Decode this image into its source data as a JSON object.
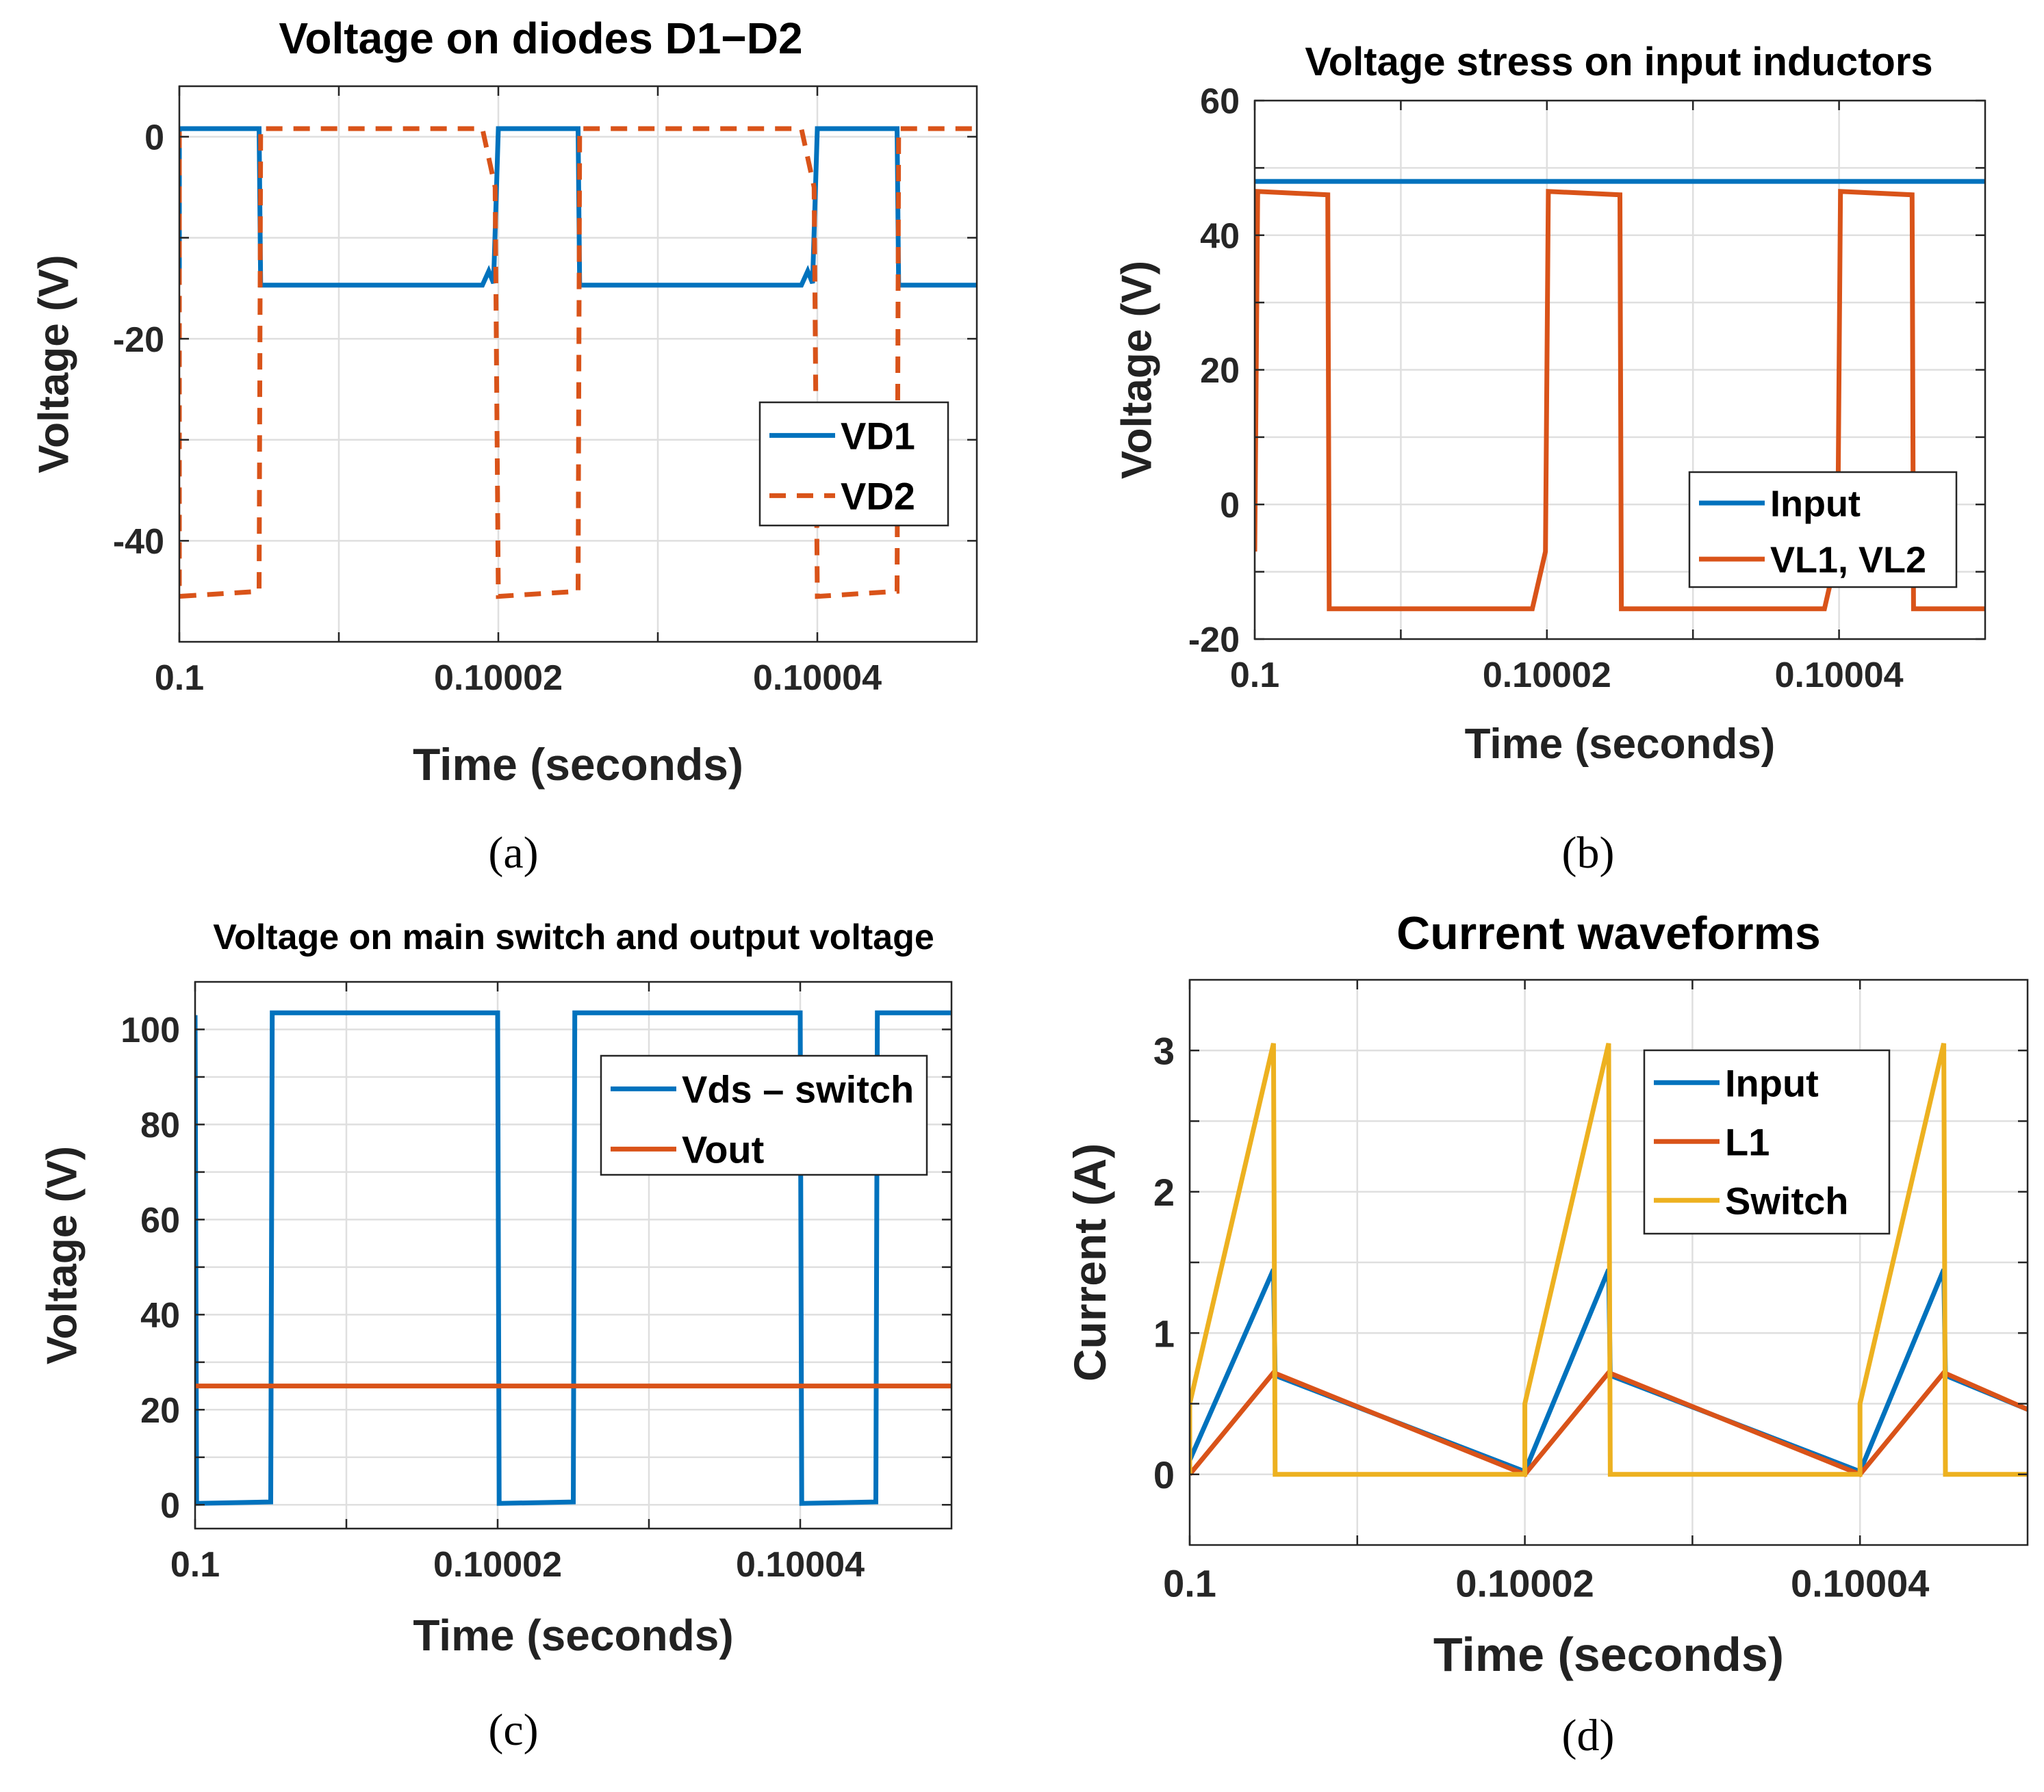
{
  "colors": {
    "blue": "#0072BD",
    "orange": "#D95319",
    "yellow": "#EDB120",
    "grid": "#DFDFDF",
    "axis": "#262626"
  },
  "chart_data": [
    {
      "id": "a",
      "panel_label": "(a)",
      "type": "line",
      "title": "Voltage on diodes D1−D2",
      "xlabel": "Time (seconds)",
      "ylabel": "Voltage (V)",
      "xlim": [
        0.1,
        0.10005
      ],
      "ylim": [
        -50,
        5
      ],
      "xticks": [
        0.1,
        0.10002,
        0.10004
      ],
      "xtick_labels": [
        "0.1",
        "0.10002",
        "0.10004"
      ],
      "xminor": [
        0.10001,
        0.10003
      ],
      "yticks": [
        0,
        -20,
        -40
      ],
      "ytick_labels": [
        "0",
        "-20",
        "-40"
      ],
      "yminor": [
        -10,
        -30
      ],
      "legend_position": "right-middle",
      "series": [
        {
          "name": "VD1",
          "color": "#0072BD",
          "style": "solid",
          "x": [
            0.1,
            0.1,
            0.100005,
            0.1000051,
            0.100019,
            0.1000194,
            0.1000197,
            0.10002,
            0.1000201,
            0.100025,
            0.1000251,
            0.100039,
            0.1000394,
            0.1000397,
            0.10004,
            0.1000401,
            0.100045,
            0.1000451,
            0.10005
          ],
          "y": [
            -14,
            0.8,
            0.8,
            -14.7,
            -14.7,
            -13.3,
            -14.5,
            0.8,
            0.8,
            0.8,
            -14.7,
            -14.7,
            -13.3,
            -14.5,
            0.8,
            0.8,
            0.8,
            -14.7,
            -14.7
          ]
        },
        {
          "name": "VD2",
          "color": "#D95319",
          "style": "dashed",
          "x": [
            0.1,
            0.1,
            0.100005,
            0.1000051,
            0.100019,
            0.1000198,
            0.10002,
            0.100025,
            0.1000251,
            0.100039,
            0.1000398,
            0.10004,
            0.100045,
            0.1000451,
            0.10005
          ],
          "y": [
            0.5,
            -45.5,
            -45,
            0.8,
            0.8,
            -5,
            -45.5,
            -45,
            0.8,
            0.8,
            -5,
            -45.5,
            -45,
            0.8,
            0.8
          ]
        }
      ]
    },
    {
      "id": "b",
      "panel_label": "(b)",
      "type": "line",
      "title": "Voltage stress on input inductors",
      "xlabel": "Time (seconds)",
      "ylabel": "Voltage (V)",
      "xlim": [
        0.1,
        0.10005
      ],
      "ylim": [
        -20,
        60
      ],
      "xticks": [
        0.1,
        0.10002,
        0.10004
      ],
      "xtick_labels": [
        "0.1",
        "0.10002",
        "0.10004"
      ],
      "xminor": [
        0.10001,
        0.10003
      ],
      "yticks": [
        60,
        40,
        20,
        0,
        -20
      ],
      "ytick_labels": [
        "60",
        "40",
        "20",
        "0",
        "-20"
      ],
      "yminor": [
        50,
        30,
        10,
        -10
      ],
      "legend_position": "bottom-right",
      "series": [
        {
          "name": "Input",
          "color": "#0072BD",
          "style": "solid",
          "x": [
            0.1,
            0.10005
          ],
          "y": [
            48,
            48
          ]
        },
        {
          "name": "VL1, VL2",
          "color": "#D95319",
          "style": "solid",
          "x": [
            0.1,
            0.1000002,
            0.100005,
            0.1000051,
            0.100019,
            0.1000199,
            0.1000201,
            0.100025,
            0.1000251,
            0.100039,
            0.1000399,
            0.1000401,
            0.100045,
            0.1000451,
            0.10005
          ],
          "y": [
            -7,
            46.5,
            46,
            -15.5,
            -15.5,
            -7,
            46.5,
            46,
            -15.5,
            -15.5,
            -7,
            46.5,
            46,
            -15.5,
            -15.5
          ]
        }
      ]
    },
    {
      "id": "c",
      "panel_label": "(c)",
      "type": "line",
      "title": "Voltage on main switch and output voltage",
      "xlabel": "Time (seconds)",
      "ylabel": "Voltage (V)",
      "xlim": [
        0.1,
        0.10005
      ],
      "ylim": [
        -5,
        110
      ],
      "xticks": [
        0.1,
        0.10002,
        0.10004
      ],
      "xtick_labels": [
        "0.1",
        "0.10002",
        "0.10004"
      ],
      "xminor": [
        0.10001,
        0.10003
      ],
      "yticks": [
        100,
        80,
        60,
        40,
        20,
        0
      ],
      "ytick_labels": [
        "100",
        "80",
        "60",
        "40",
        "20",
        "0"
      ],
      "yminor": [
        90,
        70,
        50,
        30,
        10
      ],
      "legend_position": "top-right",
      "series": [
        {
          "name": "Vds – switch",
          "color": "#0072BD",
          "style": "solid",
          "x": [
            0.1,
            0.1000001,
            0.100005,
            0.1000051,
            0.10002,
            0.1000201,
            0.100025,
            0.1000251,
            0.10004,
            0.1000401,
            0.100045,
            0.1000451,
            0.10005
          ],
          "y": [
            103,
            0.3,
            0.6,
            103.5,
            103.5,
            0.3,
            0.6,
            103.5,
            103.5,
            0.3,
            0.6,
            103.5,
            103.5
          ]
        },
        {
          "name": "Vout",
          "color": "#D95319",
          "style": "solid",
          "x": [
            0.1,
            0.10005
          ],
          "y": [
            25,
            25
          ]
        }
      ]
    },
    {
      "id": "d",
      "panel_label": "(d)",
      "type": "line",
      "title": "Current waveforms",
      "xlabel": "Time (seconds)",
      "ylabel": "Current (A)",
      "xlim": [
        0.1,
        0.10005
      ],
      "ylim": [
        -0.5,
        3.5
      ],
      "xticks": [
        0.1,
        0.10002,
        0.10004
      ],
      "xtick_labels": [
        "0.1",
        "0.10002",
        "0.10004"
      ],
      "xminor": [
        0.10001,
        0.10003
      ],
      "yticks": [
        3,
        2,
        1,
        0
      ],
      "ytick_labels": [
        "3",
        "2",
        "1",
        "0"
      ],
      "yminor": [
        2.5,
        1.5,
        0.5
      ],
      "legend_position": "top-right",
      "series": [
        {
          "name": "Input",
          "color": "#0072BD",
          "style": "solid",
          "x": [
            0.1,
            0.100005,
            0.1000051,
            0.10002,
            0.100025,
            0.1000251,
            0.10004,
            0.100045,
            0.1000451,
            0.10005
          ],
          "y": [
            0.1,
            1.45,
            0.7,
            0.02,
            1.45,
            0.7,
            0.02,
            1.45,
            0.7,
            0.46
          ]
        },
        {
          "name": "L1",
          "color": "#D95319",
          "style": "solid",
          "x": [
            0.1,
            0.100005,
            0.10002,
            0.100025,
            0.10004,
            0.100045,
            0.10005
          ],
          "y": [
            0,
            0.72,
            0,
            0.72,
            0,
            0.72,
            0.46
          ]
        },
        {
          "name": "Switch",
          "color": "#EDB120",
          "style": "solid",
          "x": [
            0.1,
            0.1,
            0.100005,
            0.1000051,
            0.10002,
            0.10002,
            0.100025,
            0.1000251,
            0.10004,
            0.10004,
            0.100045,
            0.1000451,
            0.10005
          ],
          "y": [
            0,
            0.5,
            3.05,
            0,
            0,
            0.5,
            3.05,
            0,
            0,
            0.5,
            3.05,
            0,
            0
          ]
        }
      ]
    }
  ]
}
